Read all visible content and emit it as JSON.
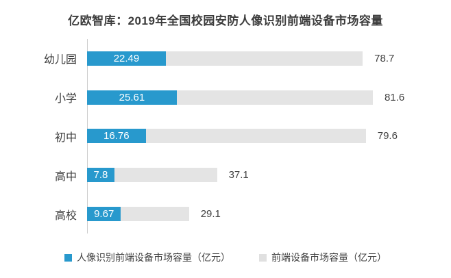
{
  "title": "亿欧智库：2019年全国校园安防人像识别前端设备市场容量",
  "colors": {
    "primary_blue": "#2899cd",
    "secondary_gray": "#e4e4e4",
    "text_dark": "#3d3d3d",
    "value_text": "#404040",
    "axis_line": "#cccccc",
    "inside_label": "#ffffff",
    "background": "#ffffff"
  },
  "chart_data": {
    "type": "bar",
    "orientation": "horizontal",
    "title": "亿欧智库：2019年全国校园安防人像识别前端设备市场容量",
    "categories": [
      "幼儿园",
      "小学",
      "初中",
      "高中",
      "高校"
    ],
    "series": [
      {
        "name": "人像识别前端设备市场容量（亿元）",
        "color": "#2899cd",
        "values": [
          22.49,
          25.61,
          16.76,
          7.8,
          9.67
        ],
        "label_position": "inside"
      },
      {
        "name": "前端设备市场容量（亿元）",
        "color": "#e4e4e4",
        "values": [
          78.7,
          81.6,
          79.6,
          37.1,
          29.1
        ],
        "label_position": "outside"
      }
    ],
    "xlim": [
      0,
      104
    ],
    "grid": false,
    "legend_position": "bottom"
  },
  "legend": {
    "items": [
      {
        "label": "人像识别前端设备市场容量（亿元）",
        "color": "#2899cd"
      },
      {
        "label": "前端设备市场容量（亿元）",
        "color": "#e0e0e0"
      }
    ]
  }
}
